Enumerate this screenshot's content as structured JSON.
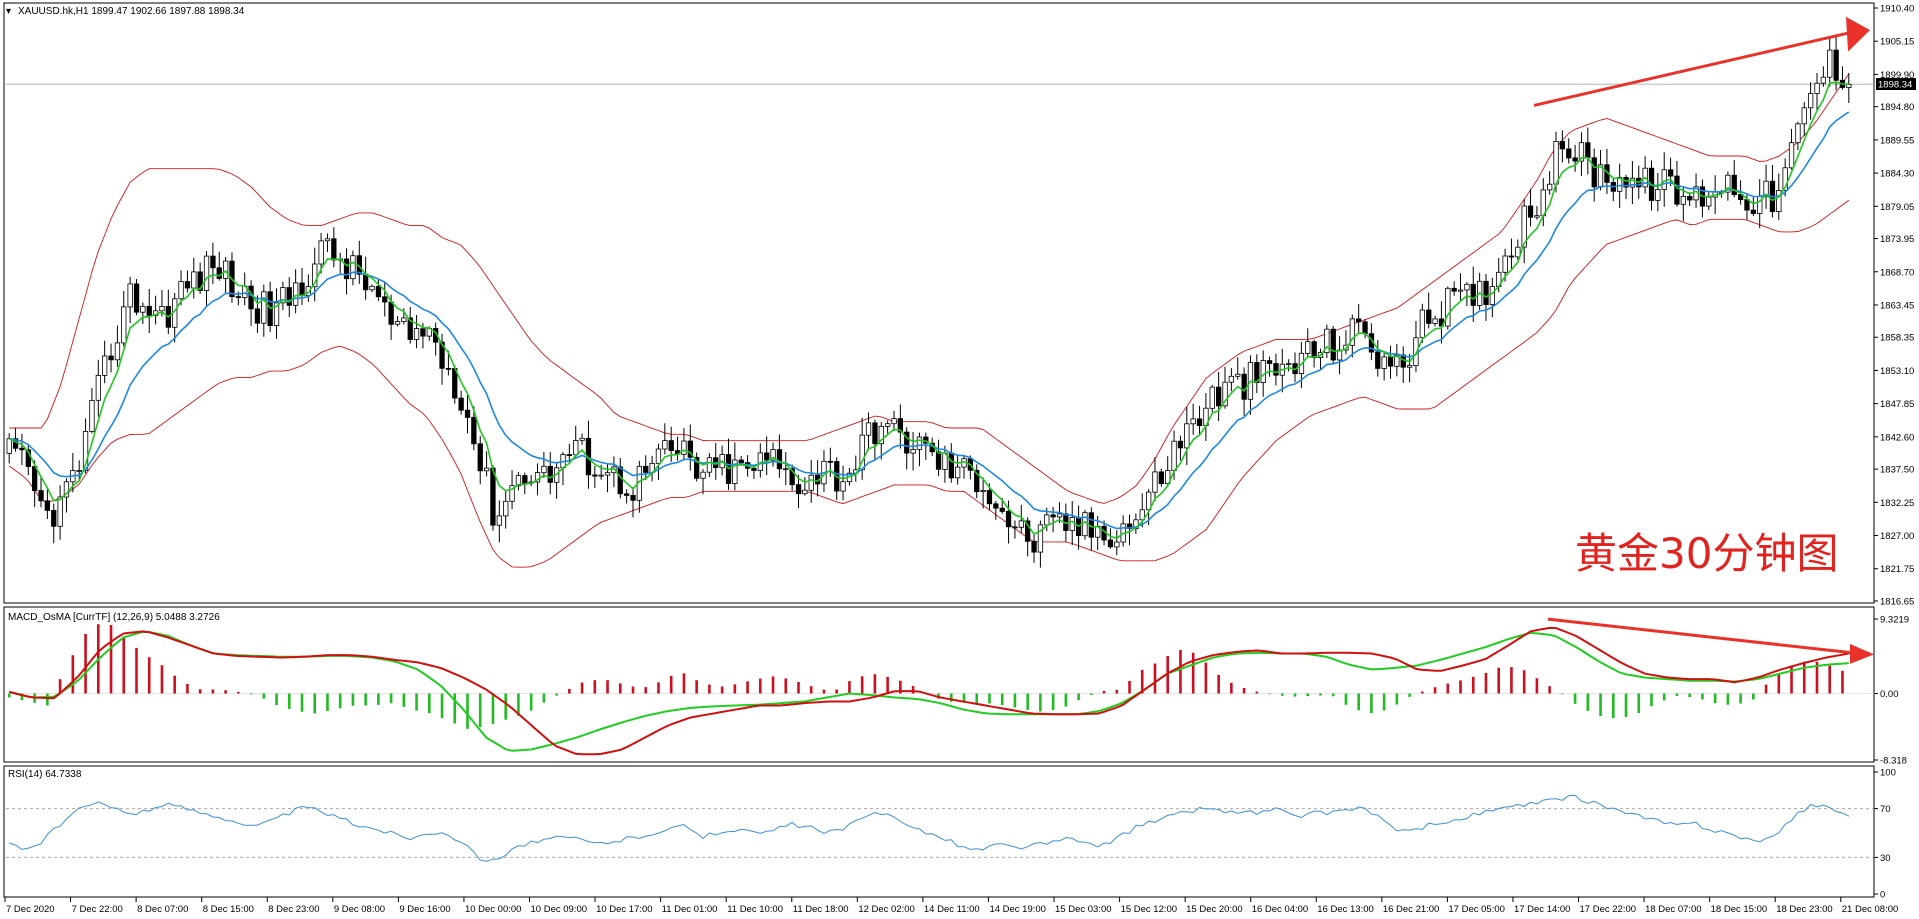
{
  "window": {
    "symbol_header": "XAUUSD.hk,H1  1899.47 1902.66 1897.88 1898.34",
    "macd_header": "MACD_OsMA [CurrTF] (12,26,9) 5.0488 3.2726",
    "rsi_header": "RSI(14) 64.7338",
    "annotation": "黄金30分钟图",
    "current_price_tag": "1898.34"
  },
  "colors": {
    "candle_bull": "#ffffff",
    "candle_bear": "#000000",
    "bollinger": "#d01818",
    "ma_fast": "#22c422",
    "ma_slow": "#1e88e5",
    "macd_line": "#d01010",
    "signal_line": "#22cc22",
    "hist_pos": "#cc1020",
    "hist_neg": "#22bb22",
    "rsi_line": "#3d8fd6",
    "arrow": "#e8322a",
    "annotation": "#e0231f"
  },
  "chart_data": [
    {
      "type": "candlestick",
      "panel": "price",
      "title": "XAUUSD.hk,H1  1899.47 1902.66 1897.88 1898.34",
      "ylim": [
        1816.65,
        1910.4
      ],
      "y_ticks": [
        "1910.40",
        "1905.15",
        "1899.90",
        "1894.80",
        "1889.55",
        "1884.30",
        "1879.05",
        "1873.95",
        "1868.70",
        "1863.45",
        "1858.35",
        "1853.10",
        "1847.85",
        "1842.60",
        "1837.50",
        "1832.25",
        "1827.00",
        "1821.75",
        "1816.65"
      ],
      "x_ticks": [
        "7 Dec 2020",
        "7 Dec 22:00",
        "8 Dec 07:00",
        "8 Dec 15:00",
        "8 Dec 23:00",
        "9 Dec 08:00",
        "9 Dec 16:00",
        "10 Dec 00:00",
        "10 Dec 09:00",
        "10 Dec 17:00",
        "11 Dec 01:00",
        "11 Dec 10:00",
        "11 Dec 18:00",
        "12 Dec 02:00",
        "14 Dec 11:00",
        "14 Dec 19:00",
        "15 Dec 03:00",
        "15 Dec 12:00",
        "15 Dec 20:00",
        "16 Dec 04:00",
        "16 Dec 13:00",
        "16 Dec 21:00",
        "17 Dec 05:00",
        "17 Dec 14:00",
        "17 Dec 22:00",
        "18 Dec 07:00",
        "18 Dec 15:00",
        "18 Dec 23:00",
        "21 Dec 08:00"
      ],
      "close_path": [
        1840,
        1837,
        1830,
        1832,
        1838,
        1848,
        1858,
        1865,
        1863,
        1862,
        1866,
        1868,
        1870,
        1866,
        1864,
        1862,
        1864,
        1868,
        1872,
        1871,
        1868,
        1866,
        1860,
        1858,
        1860,
        1855,
        1850,
        1840,
        1830,
        1835,
        1838,
        1836,
        1840,
        1840,
        1838,
        1836,
        1835,
        1838,
        1840,
        1840,
        1836,
        1838,
        1837,
        1838,
        1839,
        1836,
        1836,
        1838,
        1836,
        1840,
        1845,
        1843,
        1842,
        1840,
        1838,
        1837,
        1836,
        1832,
        1828,
        1826,
        1828,
        1829,
        1828,
        1828,
        1828,
        1830,
        1835,
        1840,
        1844,
        1848,
        1850,
        1851,
        1852,
        1853,
        1854,
        1856,
        1857,
        1858,
        1860,
        1855,
        1853,
        1858,
        1862,
        1864,
        1864,
        1866,
        1870,
        1876,
        1880,
        1886,
        1889,
        1885,
        1884,
        1884,
        1882,
        1883,
        1881,
        1880,
        1882,
        1883,
        1881,
        1880,
        1881,
        1890,
        1898,
        1902,
        1898.34
      ],
      "bollinger_mid": [
        1841,
        1840,
        1838,
        1842,
        1848,
        1855,
        1860,
        1863,
        1864,
        1865,
        1866,
        1867,
        1868,
        1868,
        1867,
        1866,
        1865,
        1865,
        1866,
        1867,
        1867,
        1866,
        1864,
        1862,
        1861,
        1858,
        1855,
        1850,
        1845,
        1842,
        1840,
        1839,
        1839,
        1839,
        1839,
        1838,
        1838,
        1838,
        1838,
        1838,
        1838,
        1838,
        1838,
        1838,
        1838,
        1838,
        1838,
        1838,
        1838,
        1839,
        1840,
        1840,
        1840,
        1840,
        1839,
        1839,
        1838,
        1836,
        1834,
        1832,
        1831,
        1830,
        1829,
        1828,
        1828,
        1829,
        1831,
        1834,
        1837,
        1840,
        1843,
        1846,
        1848,
        1850,
        1851,
        1852,
        1853,
        1854,
        1855,
        1855,
        1855,
        1856,
        1857,
        1859,
        1861,
        1863,
        1865,
        1868,
        1871,
        1875,
        1879,
        1881,
        1883,
        1883,
        1883,
        1883,
        1883,
        1882,
        1882,
        1882,
        1882,
        1881,
        1881,
        1882,
        1884,
        1887,
        1890
      ],
      "bollinger_width": [
        3,
        4,
        6,
        9,
        13,
        16,
        18,
        20,
        21,
        20,
        19,
        18,
        17,
        16,
        15,
        13,
        12,
        11,
        10,
        10,
        11,
        12,
        13,
        14,
        15,
        16,
        18,
        20,
        21,
        20,
        18,
        16,
        14,
        12,
        10,
        8,
        7,
        6,
        5,
        5,
        4,
        4,
        4,
        4,
        4,
        4,
        4,
        5,
        6,
        6,
        6,
        5,
        5,
        5,
        5,
        5,
        6,
        6,
        6,
        6,
        5,
        4,
        4,
        4,
        5,
        6,
        8,
        10,
        11,
        12,
        11,
        10,
        9,
        8,
        7,
        6,
        6,
        6,
        6,
        7,
        8,
        9,
        10,
        10,
        10,
        10,
        10,
        11,
        12,
        13,
        12,
        11,
        10,
        9,
        8,
        7,
        6,
        6,
        5,
        5,
        5,
        5,
        6,
        7,
        8,
        9,
        10
      ]
    },
    {
      "type": "bar",
      "panel": "macd",
      "title": "MACD_OsMA [CurrTF] (12,26,9) 5.0488 3.2726",
      "ylim": [
        -8.318,
        9.3219
      ],
      "y_ticks": [
        "9.3219",
        "0.00",
        "-8.318"
      ],
      "macd_line": [
        0.2,
        -0.5,
        -0.6,
        2.0,
        5.5,
        7.5,
        7.8,
        7.0,
        6.0,
        5.0,
        4.7,
        4.6,
        4.5,
        4.6,
        4.8,
        4.8,
        4.6,
        4.2,
        3.9,
        3.2,
        2.0,
        0.5,
        -1.5,
        -4.0,
        -6.5,
        -7.6,
        -7.6,
        -7.0,
        -5.5,
        -4.0,
        -3.0,
        -2.5,
        -2.0,
        -1.5,
        -1.5,
        -1.2,
        -1.0,
        -1.0,
        -0.5,
        0.3,
        0.3,
        -0.5,
        -1.0,
        -1.5,
        -2.0,
        -2.5,
        -2.6,
        -2.6,
        -2.5,
        -1.5,
        0.5,
        2.5,
        4.0,
        4.8,
        5.2,
        5.4,
        5.0,
        5.0,
        5.1,
        5.1,
        5.0,
        4.4,
        3.0,
        2.8,
        3.5,
        4.3,
        6.0,
        7.8,
        8.3,
        7.2,
        5.5,
        3.8,
        2.5,
        2.0,
        1.8,
        1.8,
        1.4,
        2.0,
        3.0,
        3.8,
        4.5,
        5.0
      ],
      "signal_line": [
        0.2,
        -0.5,
        -0.4,
        1.5,
        4.5,
        7.0,
        7.8,
        7.2,
        6.0,
        5.0,
        4.8,
        4.7,
        4.6,
        4.6,
        4.7,
        4.7,
        4.5,
        4.0,
        3.0,
        1.0,
        -2.0,
        -5.5,
        -7.2,
        -7.0,
        -6.3,
        -5.5,
        -4.5,
        -3.6,
        -2.8,
        -2.2,
        -1.8,
        -1.6,
        -1.5,
        -1.4,
        -1.2,
        -1.0,
        -0.5,
        0,
        -0.2,
        -0.5,
        -0.7,
        -1.2,
        -2.0,
        -2.5,
        -2.6,
        -2.6,
        -2.6,
        -2.6,
        -2.2,
        -1.2,
        0.5,
        2.5,
        3.5,
        4.5,
        5.0,
        5.1,
        5.0,
        5.0,
        4.6,
        3.6,
        3.0,
        3.2,
        3.5,
        4.2,
        5.0,
        5.8,
        6.8,
        7.6,
        7.3,
        5.8,
        4.0,
        2.5,
        2.0,
        1.8,
        1.6,
        1.6,
        1.5,
        1.8,
        2.5,
        3.2,
        3.6,
        3.8
      ],
      "histogram": [
        -0.5,
        -1.0,
        -1.5,
        3.5,
        7.5,
        9.3,
        7.0,
        5.0,
        3.5,
        1.5,
        0.5,
        0.5,
        0.2,
        -0.3,
        -1.5,
        -2.2,
        -2.5,
        -2.0,
        -1.5,
        -1.5,
        -1.2,
        -2.0,
        -2.5,
        -3.5,
        -4.5,
        -4.0,
        -3.2,
        -2.5,
        -1.0,
        0.3,
        1.5,
        1.8,
        1.2,
        0.6,
        1.5,
        2.8,
        1.5,
        0.8,
        1.2,
        1.8,
        2.2,
        1.6,
        0.8,
        0.2,
        1.8,
        2.5,
        2.0,
        1.2,
        -0.3,
        -1.0,
        -1.2,
        -1.2,
        -1.5,
        -2.0,
        -2.3,
        -1.8,
        -0.6,
        0.3,
        0.5,
        2.8,
        4.0,
        5.5,
        5.0,
        2.5,
        1.0,
        0.3,
        -0.2,
        -0.4,
        -0.3,
        -0.2,
        -1.8,
        -2.5,
        -2.0,
        -0.5,
        0.5,
        1.2,
        1.8,
        2.5,
        3.5,
        3.0,
        1.5,
        0,
        -1.8,
        -2.8,
        -3.2,
        -2.5,
        -1.2,
        -0.3,
        -0.5,
        -1.2,
        -1.5,
        -0.8,
        2.0,
        3.5,
        4.2,
        3.5,
        2.5
      ]
    },
    {
      "type": "line",
      "panel": "rsi",
      "title": "RSI(14) 64.7338",
      "ylim": [
        0,
        100
      ],
      "y_ticks": [
        "100",
        "70",
        "30",
        "0"
      ],
      "levels": [
        70,
        30
      ],
      "values": [
        43,
        36,
        44,
        58,
        70,
        74,
        71,
        66,
        69,
        73,
        71,
        67,
        64,
        60,
        55,
        59,
        66,
        71,
        68,
        62,
        57,
        54,
        50,
        46,
        49,
        52,
        43,
        30,
        27,
        38,
        42,
        44,
        47,
        44,
        41,
        44,
        46,
        50,
        53,
        56,
        47,
        50,
        54,
        49,
        52,
        57,
        55,
        50,
        53,
        60,
        67,
        64,
        56,
        48,
        45,
        38,
        36,
        41,
        38,
        40,
        42,
        45,
        42,
        40,
        47,
        55,
        60,
        64,
        68,
        71,
        67,
        68,
        66,
        70,
        63,
        66,
        67,
        69,
        71,
        63,
        50,
        53,
        57,
        59,
        63,
        67,
        70,
        72,
        74,
        77,
        80,
        76,
        72,
        67,
        63,
        60,
        56,
        58,
        53,
        50,
        46,
        42,
        50,
        66,
        74,
        70,
        65
      ]
    }
  ]
}
